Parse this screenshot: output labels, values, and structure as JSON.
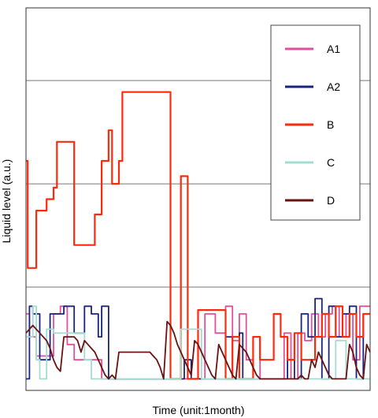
{
  "chart_data": {
    "type": "line",
    "title": "",
    "xlabel": "Time (unit:1month)",
    "ylabel": "Liquid level (a.u.)",
    "xlim": [
      0,
      100
    ],
    "ylim": [
      0,
      100
    ],
    "grid": {
      "horizontal": true,
      "vertical": false,
      "y_lines": [
        27,
        54,
        81
      ]
    },
    "legend": {
      "position": "top-right",
      "entries": [
        "A1",
        "A2",
        "B",
        "C",
        "D"
      ]
    },
    "series": [
      {
        "name": "A1",
        "color": "#e0509a",
        "x": [
          0,
          1,
          1,
          3,
          3,
          8,
          8,
          10,
          10,
          12,
          12,
          14,
          14,
          20,
          20,
          22,
          22,
          24,
          24,
          26,
          26,
          30,
          30,
          33,
          33,
          36,
          36,
          39,
          39,
          41,
          41,
          45,
          45,
          48,
          48,
          52,
          52,
          55,
          55,
          58,
          58,
          60,
          60,
          62,
          62,
          64,
          64,
          66,
          66,
          68,
          68,
          70,
          70,
          72,
          72,
          75,
          75,
          77,
          77,
          79,
          79,
          81,
          81,
          83,
          83,
          85,
          85,
          87,
          87,
          89,
          89,
          91,
          91,
          93,
          93,
          95,
          95,
          97,
          97,
          100
        ],
        "y": [
          20,
          20,
          14,
          14,
          9,
          9,
          20,
          20,
          22,
          22,
          12,
          12,
          8,
          8,
          8,
          8,
          3,
          3,
          3,
          3,
          3,
          3,
          3,
          3,
          3,
          3,
          3,
          3,
          3,
          3,
          3,
          3,
          3,
          3,
          3,
          3,
          20,
          20,
          15,
          15,
          22,
          22,
          13,
          13,
          20,
          20,
          8,
          8,
          14,
          14,
          3,
          3,
          3,
          3,
          3,
          3,
          15,
          15,
          3,
          3,
          15,
          15,
          13,
          13,
          20,
          20,
          14,
          14,
          20,
          20,
          22,
          22,
          14,
          14,
          20,
          20,
          8,
          8,
          22,
          22
        ]
      },
      {
        "name": "A2",
        "color": "#1a237e",
        "x": [
          0,
          1,
          1,
          2,
          2,
          4,
          4,
          7,
          7,
          11,
          11,
          14,
          14,
          17,
          17,
          19,
          19,
          21,
          21,
          22,
          22,
          24,
          24,
          26,
          26,
          40,
          40,
          43,
          43,
          46,
          46,
          48,
          48,
          50,
          50,
          53,
          53,
          56,
          56,
          58,
          58,
          60,
          60,
          62,
          62,
          63,
          63,
          65,
          65,
          67,
          67,
          71,
          71,
          74,
          74,
          76,
          76,
          78,
          78,
          80,
          80,
          82,
          82,
          84,
          84,
          86,
          86,
          88,
          88,
          90,
          90,
          92,
          92,
          94,
          94,
          96,
          96,
          98,
          98,
          100
        ],
        "y": [
          3,
          3,
          22,
          22,
          20,
          20,
          8,
          8,
          20,
          20,
          22,
          22,
          15,
          15,
          22,
          22,
          20,
          20,
          14,
          14,
          22,
          22,
          3,
          3,
          3,
          3,
          3,
          3,
          3,
          3,
          8,
          8,
          3,
          3,
          3,
          3,
          3,
          3,
          3,
          3,
          14,
          14,
          3,
          3,
          15,
          15,
          3,
          3,
          3,
          3,
          3,
          3,
          3,
          3,
          3,
          3,
          8,
          8,
          3,
          3,
          20,
          20,
          14,
          14,
          24,
          24,
          3,
          3,
          22,
          22,
          14,
          14,
          20,
          20,
          22,
          22,
          3,
          3,
          20,
          20
        ]
      },
      {
        "name": "B",
        "color": "#ff2a0a",
        "x": [
          0,
          0.5,
          0.5,
          3,
          3,
          6,
          6,
          8,
          8,
          9,
          9,
          10,
          10,
          14,
          14,
          16,
          16,
          18,
          18,
          20,
          20,
          22,
          22,
          24,
          24,
          25,
          25,
          27,
          27,
          28,
          28,
          30,
          30,
          36,
          36,
          37,
          37,
          39,
          39,
          40,
          40,
          41,
          41,
          42,
          42,
          45,
          45,
          47,
          47,
          48,
          48,
          50,
          50,
          52,
          52,
          55,
          55,
          58,
          58,
          60,
          60,
          62,
          62,
          66,
          66,
          68,
          68,
          72,
          72,
          74,
          74,
          76,
          76,
          78,
          78,
          80,
          80,
          84,
          84,
          86,
          86,
          88,
          88,
          90,
          90,
          92,
          92,
          94,
          94,
          96,
          96,
          98,
          98,
          100
        ],
        "y": [
          60,
          60,
          32,
          32,
          47,
          47,
          50,
          50,
          53,
          53,
          65,
          65,
          65,
          65,
          38,
          38,
          38,
          38,
          38,
          38,
          46,
          46,
          60,
          60,
          68,
          68,
          54,
          54,
          60,
          60,
          78,
          78,
          78,
          78,
          78,
          78,
          78,
          78,
          78,
          78,
          78,
          78,
          78,
          78,
          3,
          3,
          56,
          56,
          3,
          3,
          3,
          3,
          21,
          21,
          21,
          21,
          21,
          21,
          3,
          3,
          14,
          14,
          3,
          3,
          14,
          14,
          8,
          8,
          20,
          20,
          14,
          14,
          8,
          8,
          15,
          15,
          8,
          8,
          14,
          14,
          20,
          20,
          14,
          14,
          22,
          22,
          14,
          14,
          20,
          20,
          14,
          14,
          20,
          20
        ]
      },
      {
        "name": "C",
        "color": "#a3ddd0",
        "x": [
          0,
          2,
          2,
          3,
          3,
          4,
          4,
          6,
          6,
          8,
          8,
          17,
          17,
          19,
          19,
          22,
          22,
          25,
          25,
          29,
          29,
          33,
          33,
          38,
          38,
          42,
          42,
          44,
          44,
          45,
          45,
          51,
          51,
          55,
          55,
          60,
          60,
          63,
          63,
          66,
          66,
          70,
          70,
          74,
          74,
          78,
          78,
          81,
          81,
          84,
          84,
          87,
          87,
          90,
          90,
          93,
          93,
          96,
          96,
          100
        ],
        "y": [
          14,
          14,
          22,
          22,
          8,
          8,
          3,
          3,
          16,
          16,
          15,
          15,
          8,
          8,
          3,
          3,
          3,
          3,
          3,
          3,
          3,
          3,
          3,
          3,
          3,
          3,
          3,
          3,
          3,
          3,
          16,
          16,
          3,
          3,
          3,
          3,
          3,
          3,
          3,
          3,
          3,
          3,
          3,
          3,
          3,
          3,
          3,
          3,
          3,
          3,
          3,
          3,
          3,
          3,
          13,
          13,
          3,
          3,
          3,
          3
        ]
      },
      {
        "name": "D",
        "color": "#6b1212",
        "x": [
          0,
          2,
          4,
          6,
          7,
          8,
          9,
          10,
          11,
          12,
          13,
          14,
          15,
          16,
          17,
          18,
          19,
          20,
          21,
          22,
          23,
          24,
          25,
          26,
          27,
          28,
          29,
          30,
          31,
          32,
          33,
          34,
          35,
          36,
          37,
          38,
          39,
          40,
          41,
          42,
          43,
          44,
          45,
          46,
          47,
          48,
          49,
          50,
          51,
          52,
          53,
          54,
          55,
          56,
          57,
          58,
          59,
          60,
          61,
          62,
          63,
          64,
          65,
          66,
          67,
          68,
          69,
          70,
          71,
          72,
          73,
          74,
          75,
          76,
          77,
          78,
          79,
          80,
          81,
          82,
          83,
          84,
          85,
          86,
          87,
          88,
          89,
          90,
          91,
          92,
          93,
          94,
          95,
          96,
          97,
          98,
          99,
          100
        ],
        "y": [
          15,
          17,
          15,
          13,
          11,
          8,
          6,
          5,
          14,
          14,
          14,
          14,
          13,
          10,
          13,
          12,
          11,
          10,
          8,
          6,
          4,
          3,
          4,
          3,
          10,
          10,
          10,
          10,
          10,
          10,
          10,
          10,
          10,
          10,
          9,
          8,
          6,
          3,
          18,
          17,
          15,
          12,
          10,
          8,
          6,
          4,
          13,
          12,
          10,
          8,
          6,
          4,
          3,
          12,
          10,
          8,
          6,
          4,
          3,
          12,
          11,
          10,
          8,
          6,
          4,
          3,
          3,
          3,
          3,
          3,
          3,
          3,
          3,
          3,
          3,
          3,
          3,
          4,
          3,
          3,
          8,
          6,
          10,
          8,
          6,
          4,
          3,
          3,
          3,
          3,
          3,
          12,
          10,
          6,
          4,
          3,
          12,
          10
        ]
      }
    ]
  }
}
